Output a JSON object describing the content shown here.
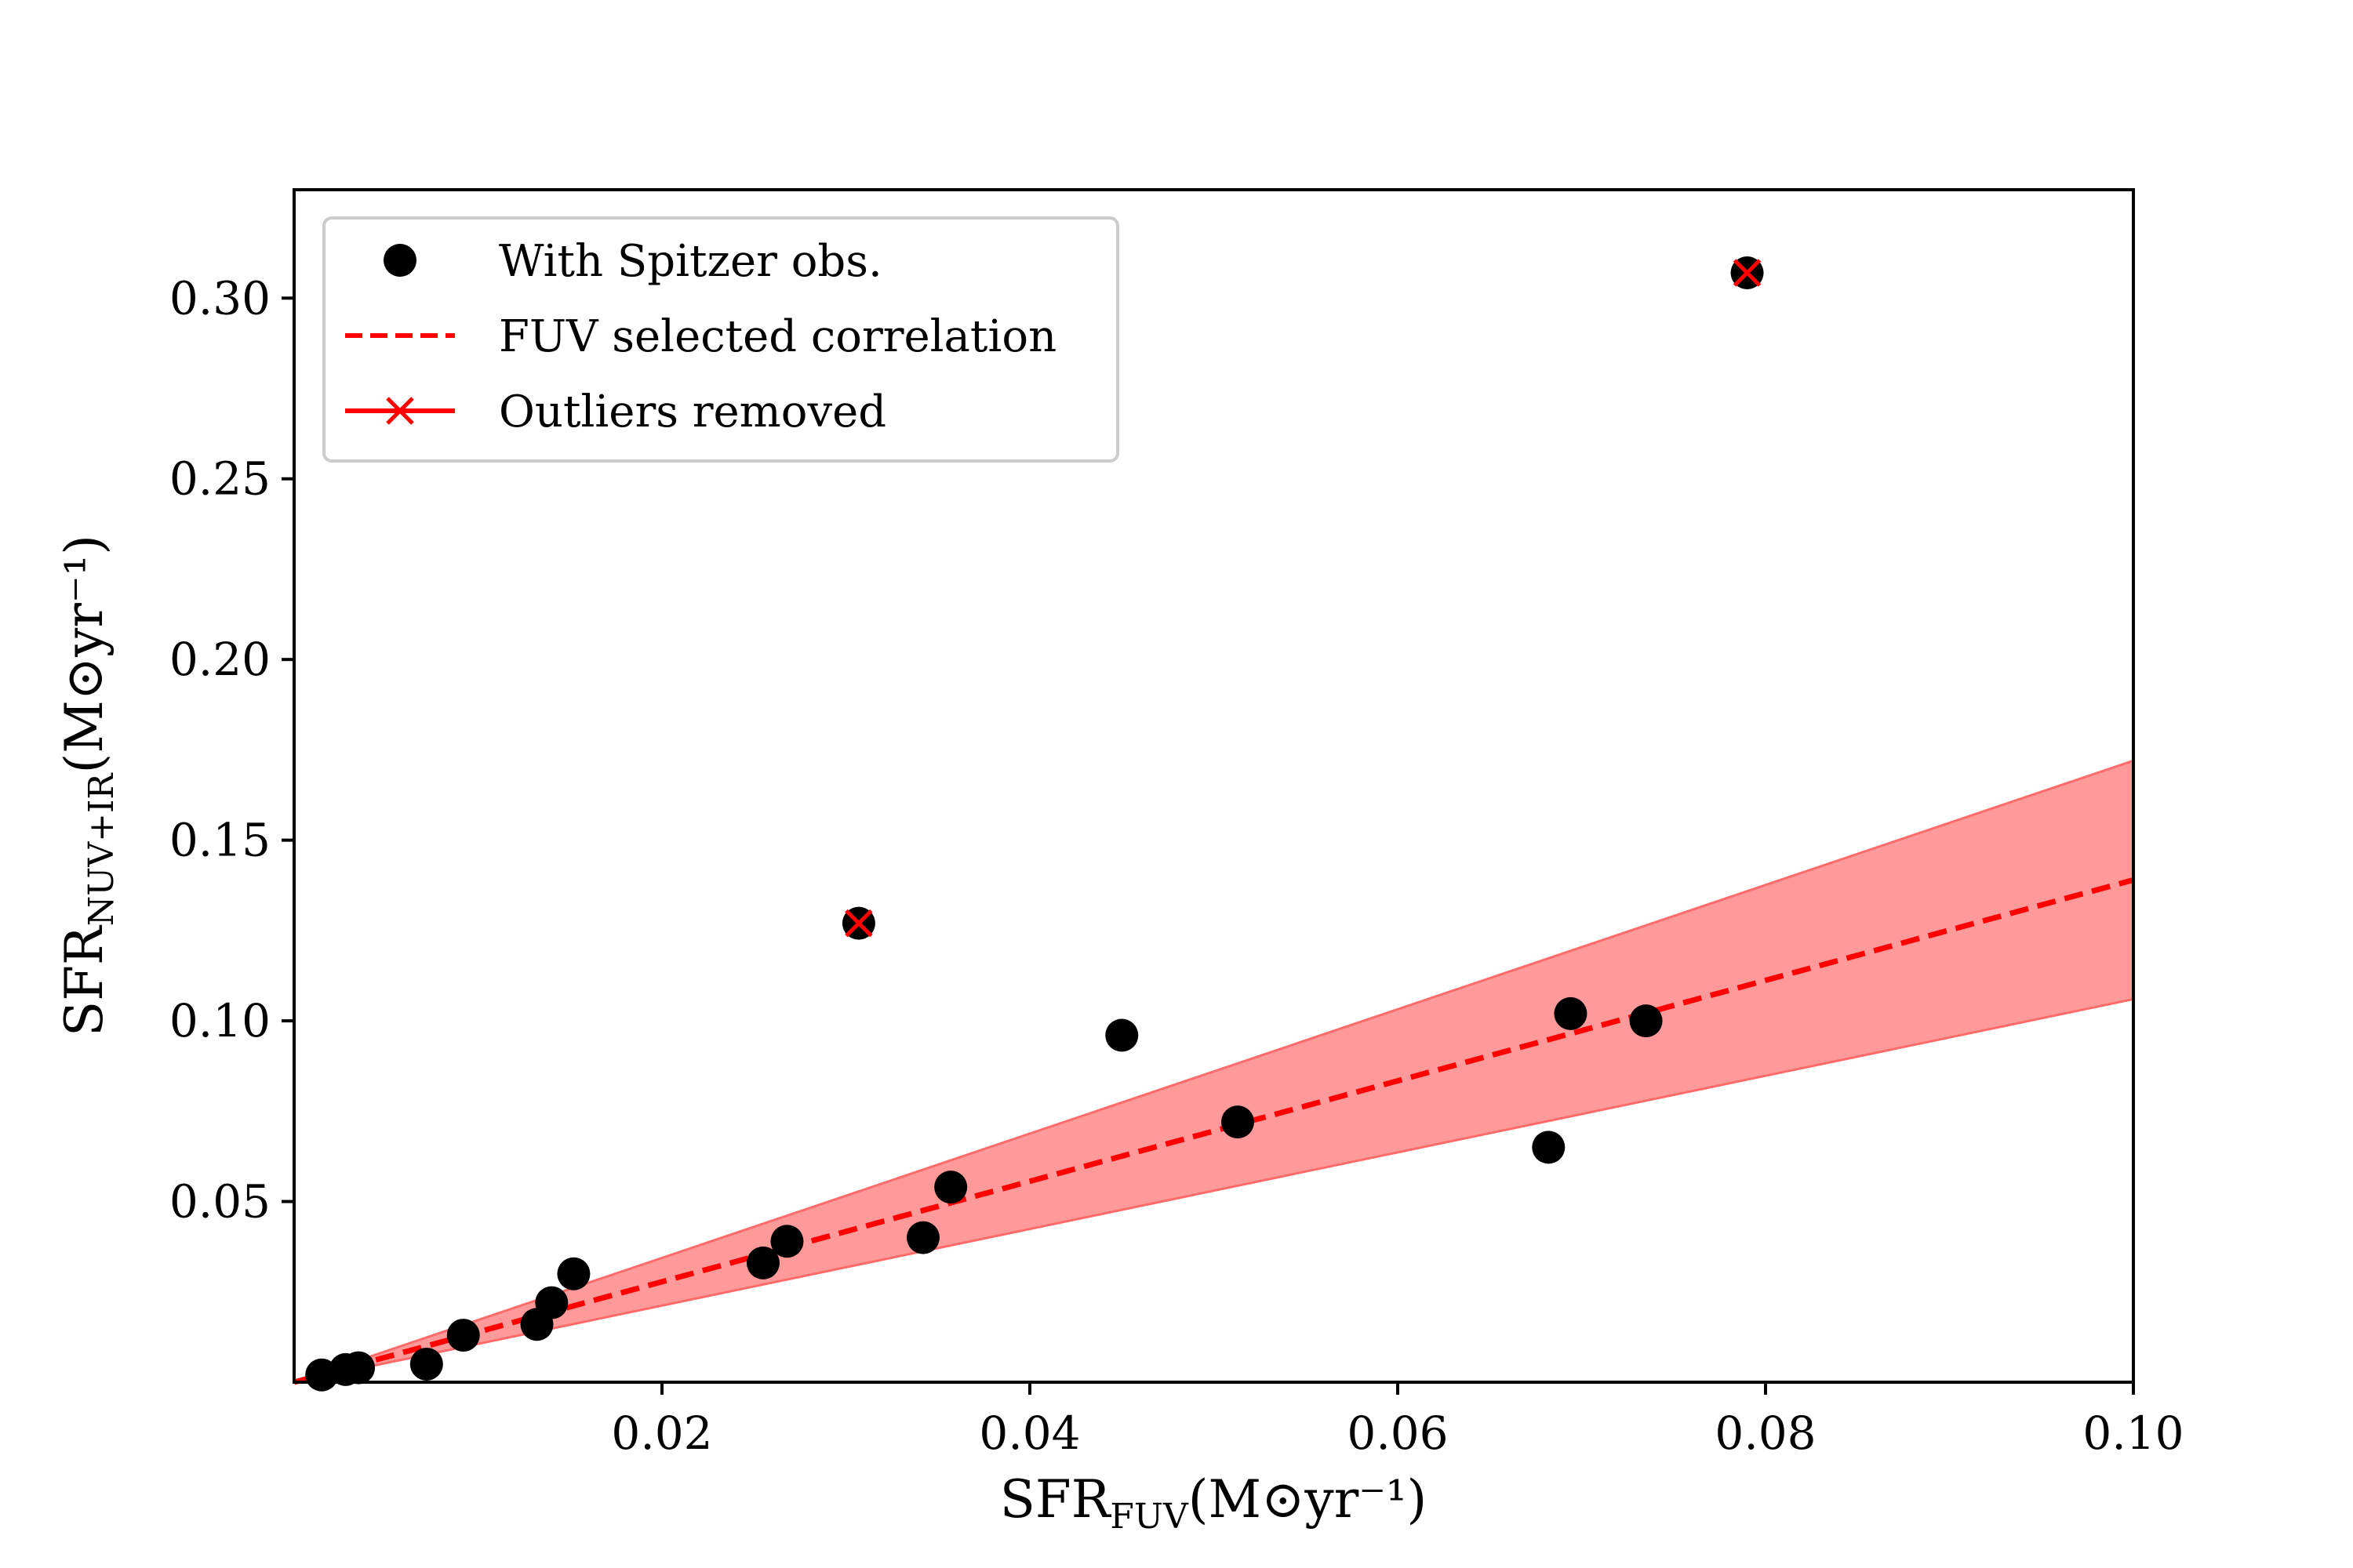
{
  "chart_data": {
    "type": "scatter",
    "title": "",
    "xlabel": {
      "main": "SFR",
      "sub": "FUV",
      "units": "(M⊙yr⁻¹)"
    },
    "ylabel": {
      "main": "SFR",
      "sub": "NUV+IR",
      "units": "(M⊙yr⁻¹)"
    },
    "xlim": [
      0.0,
      0.1
    ],
    "ylim": [
      0.0,
      0.33
    ],
    "x_ticks": [
      0.02,
      0.04,
      0.06,
      0.08,
      0.1
    ],
    "x_tick_labels": [
      "0.02",
      "0.04",
      "0.06",
      "0.08",
      "0.10"
    ],
    "y_ticks": [
      0.05,
      0.1,
      0.15,
      0.2,
      0.25,
      0.3
    ],
    "y_tick_labels": [
      "0.05",
      "0.10",
      "0.15",
      "0.20",
      "0.25",
      "0.30"
    ],
    "grid": false,
    "legend_position": "top-left",
    "legend": {
      "points_label": "With Spitzer obs.",
      "fit_label": "FUV selected correlation",
      "outliers_label": "Outliers removed"
    },
    "series": [
      {
        "name": "With Spitzer obs.",
        "kind": "points",
        "color": "#000000",
        "x": [
          0.0015,
          0.0028,
          0.0035,
          0.0072,
          0.0092,
          0.0132,
          0.014,
          0.0152,
          0.0255,
          0.0268,
          0.0307,
          0.0342,
          0.0357,
          0.045,
          0.0513,
          0.0682,
          0.0694,
          0.0735,
          0.079
        ],
        "y": [
          0.002,
          0.0035,
          0.004,
          0.005,
          0.013,
          0.016,
          0.022,
          0.03,
          0.033,
          0.039,
          0.127,
          0.04,
          0.054,
          0.096,
          0.072,
          0.065,
          0.102,
          0.1,
          0.307
        ]
      },
      {
        "name": "FUV selected correlation",
        "kind": "line",
        "style": "dashed",
        "color": "#ff0000",
        "slope": 1.39,
        "band_upper_slope": 1.72,
        "band_lower_slope": 1.06,
        "band_color": "#ff9a9a"
      },
      {
        "name": "Outliers removed",
        "kind": "marker-x",
        "color": "#ff0000",
        "x": [
          0.0307,
          0.079
        ],
        "y": [
          0.127,
          0.307
        ]
      }
    ]
  }
}
